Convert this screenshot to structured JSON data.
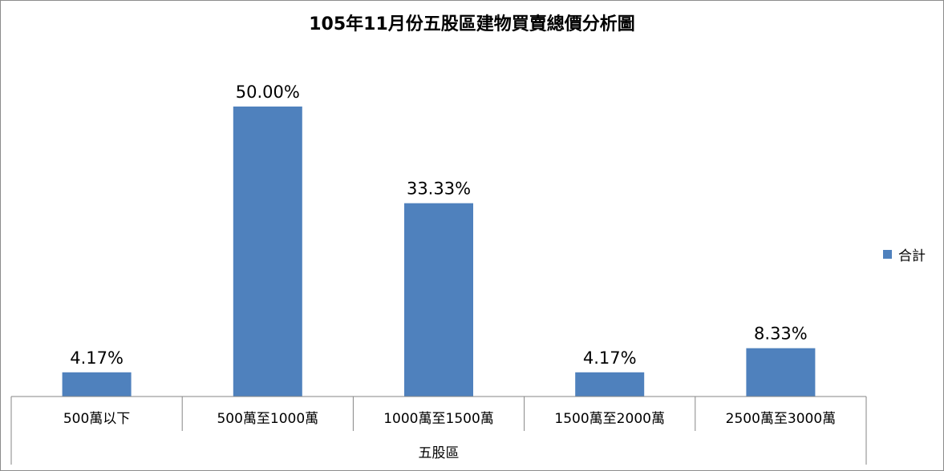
{
  "chart_data": {
    "type": "bar",
    "title": "105年11月份五股區建物買賣總價分析圖",
    "categories": [
      "500萬以下",
      "500萬至1000萬",
      "1000萬至1500萬",
      "1500萬至2000萬",
      "2500萬至3000萬"
    ],
    "group_label": "五股區",
    "series": [
      {
        "name": "合計",
        "color": "#4f81bd",
        "values": [
          4.17,
          50.0,
          33.33,
          4.17,
          8.33
        ],
        "labels": [
          "4.17%",
          "50.00%",
          "33.33%",
          "4.17%",
          "8.33%"
        ]
      }
    ],
    "ylim": [
      0,
      50
    ],
    "grid": false,
    "legend_position": "right"
  }
}
